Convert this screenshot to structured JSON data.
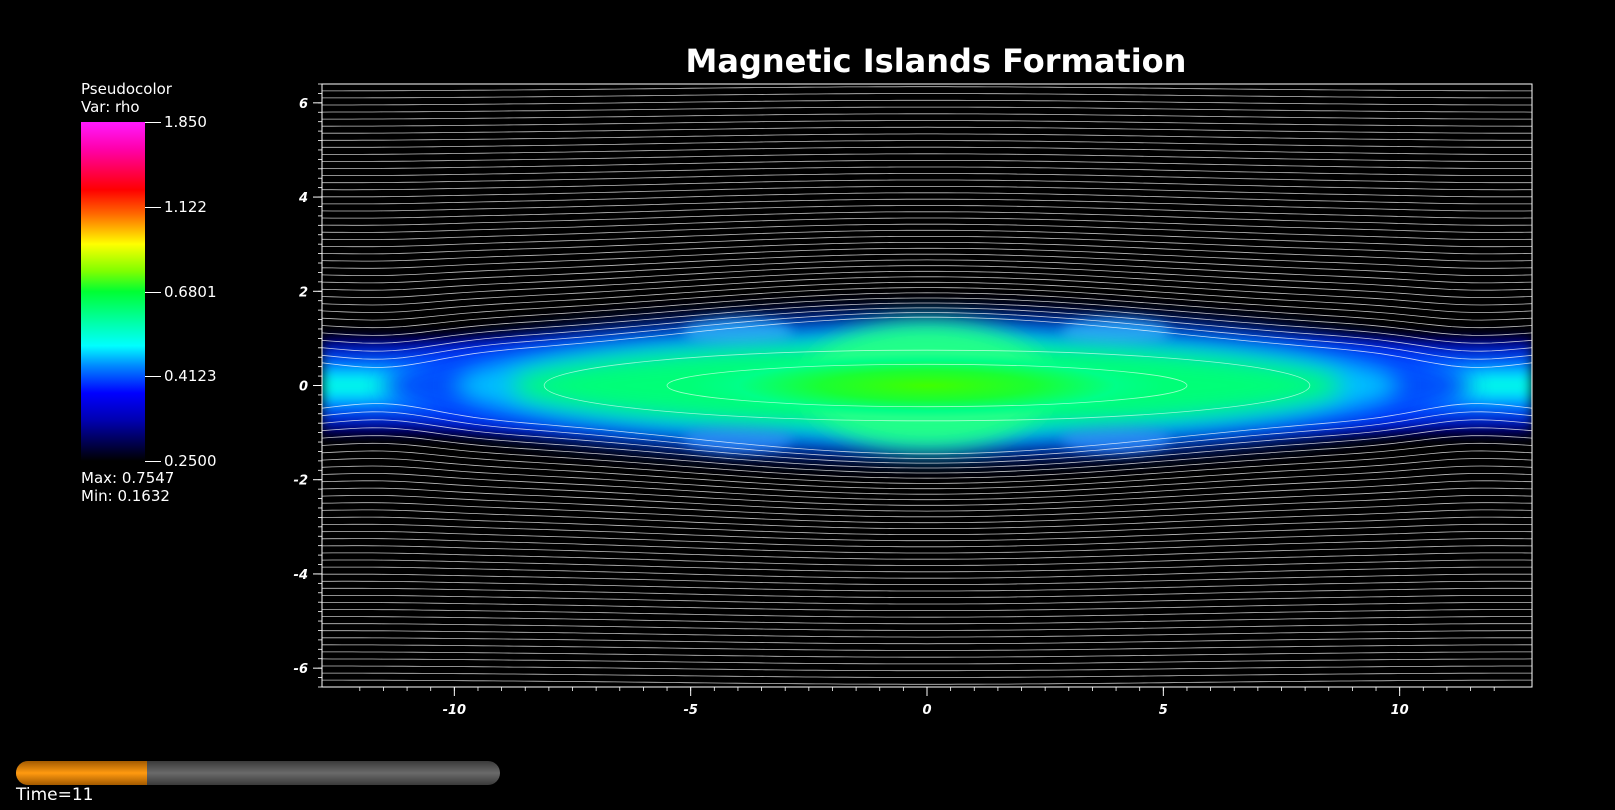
{
  "chart_data": {
    "type": "heatmap",
    "title": "Magnetic Islands Formation",
    "xlabel": "",
    "ylabel": "",
    "xlim": [
      -12.8,
      12.8
    ],
    "ylim": [
      -6.4,
      6.4
    ],
    "x_ticks": [
      -10,
      -5,
      0,
      5,
      10
    ],
    "y_ticks": [
      -6,
      -4,
      -2,
      0,
      2,
      4,
      6
    ],
    "colorbar": {
      "header": "Pseudocolor",
      "variable": "Var: rho",
      "range": [
        0.25,
        1.85
      ],
      "tick_labels": [
        "1.850",
        "1.122",
        "0.6801",
        "0.4123",
        "0.2500"
      ],
      "tick_values": [
        1.85,
        1.122,
        0.6801,
        0.4123,
        0.25
      ],
      "max_label": "Max:",
      "max_value": "0.7547",
      "min_label": "Min:",
      "min_value": "0.1632"
    },
    "field_lines": "white contour lines of magnetic flux, with an island (O-point) centered at x=0 and X-points near x=±11.5",
    "current_sheet": {
      "center_y": 0,
      "half_width_y": 1.5,
      "peak_rho_color": "#40ff00"
    }
  },
  "time_slider": {
    "label": "Time=11",
    "progress": 0.27,
    "fill_color": "#ff9a10"
  }
}
